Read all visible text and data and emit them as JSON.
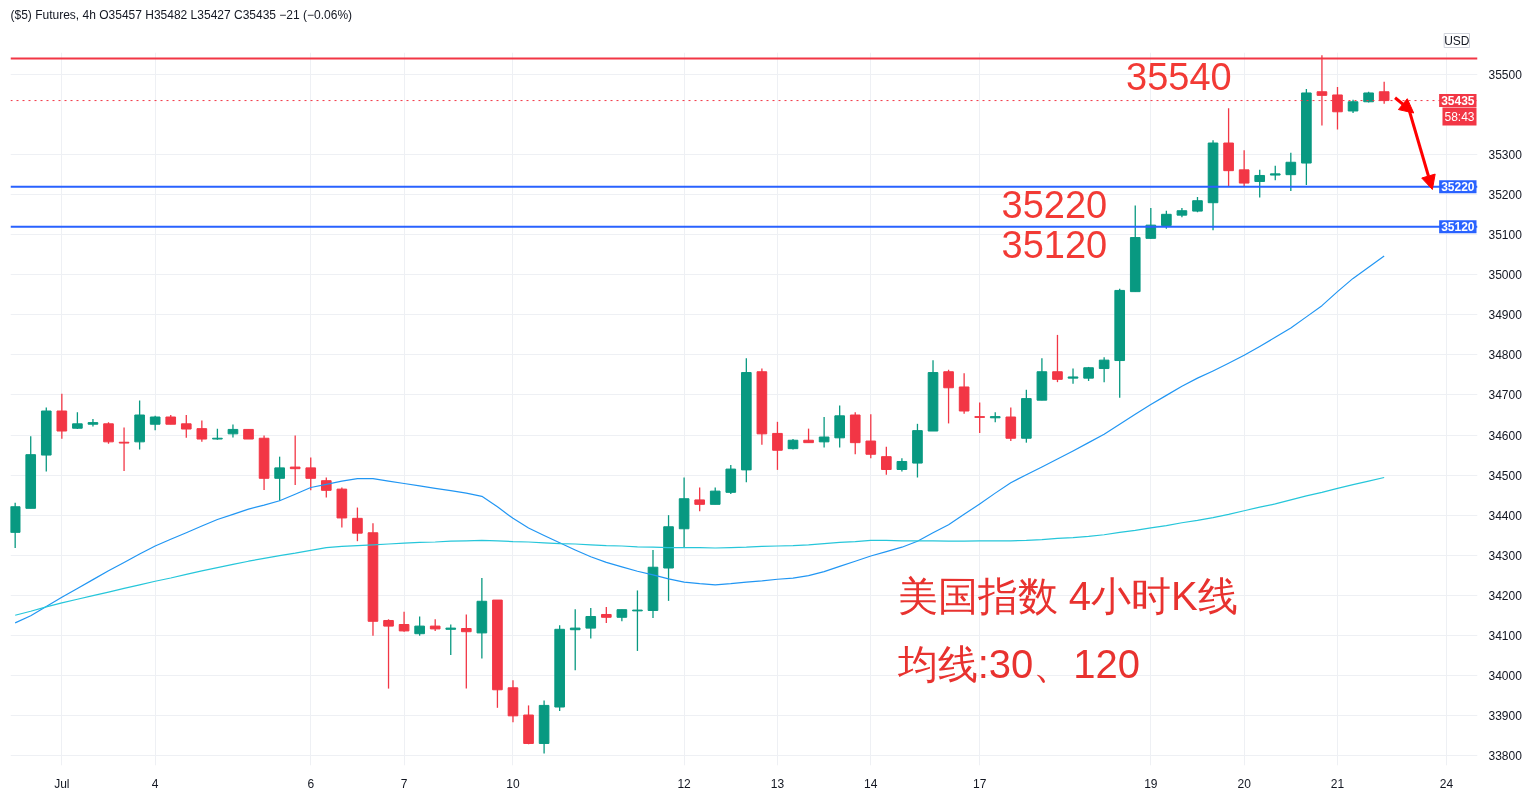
{
  "chart_data": {
    "type": "candlestick",
    "title": "($5) Futures, 4h  O35457 H35482 L35427 C35435 −21 (−0.06%)",
    "ylabel": "USD",
    "categories": [
      null,
      null,
      null,
      "Jul",
      null,
      null,
      null,
      null,
      null,
      "4",
      null,
      null,
      null,
      null,
      null,
      null,
      null,
      null,
      null,
      "6",
      null,
      null,
      null,
      null,
      null,
      "7",
      null,
      null,
      null,
      null,
      null,
      null,
      "10",
      null,
      null,
      null,
      null,
      null,
      null,
      null,
      null,
      null,
      null,
      "12",
      null,
      null,
      null,
      null,
      null,
      "13",
      null,
      null,
      null,
      null,
      null,
      "14",
      null,
      null,
      null,
      null,
      null,
      null,
      "17",
      null,
      null,
      null,
      null,
      null,
      null,
      null,
      null,
      null,
      null,
      "19",
      null,
      null,
      null,
      null,
      null,
      "20",
      null,
      null,
      null,
      null,
      null,
      "21",
      null,
      null,
      null,
      null,
      null,
      null,
      "24"
    ],
    "ohlc": [
      [
        34357,
        34431,
        34318,
        34421
      ],
      [
        34417,
        34597,
        34417,
        34551
      ],
      [
        34550,
        34669,
        34509,
        34660
      ],
      [
        34660,
        34703,
        34591,
        34610
      ],
      [
        34617,
        34657,
        34615,
        34628
      ],
      [
        34627,
        34640,
        34621,
        34631
      ],
      [
        34628,
        34632,
        34578,
        34583
      ],
      [
        34582,
        34619,
        34510,
        34580
      ],
      [
        34583,
        34686,
        34564,
        34650
      ],
      [
        34627,
        34648,
        34612,
        34645
      ],
      [
        34645,
        34650,
        34627,
        34627
      ],
      [
        34628,
        34650,
        34593,
        34615
      ],
      [
        34616,
        34636,
        34583,
        34590
      ],
      [
        34590,
        34616,
        34588,
        34592
      ],
      [
        34603,
        34626,
        34594,
        34614
      ],
      [
        34614,
        34614,
        34590,
        34590
      ],
      [
        34592,
        34599,
        34463,
        34492
      ],
      [
        34492,
        34546,
        34436,
        34518
      ],
      [
        34520,
        34599,
        34475,
        34516
      ],
      [
        34518,
        34544,
        34462,
        34492
      ],
      [
        34486,
        34494,
        34444,
        34462
      ],
      [
        34465,
        34469,
        34369,
        34393
      ],
      [
        34392,
        34419,
        34335,
        34355
      ],
      [
        34356,
        34380,
        34099,
        34135
      ],
      [
        34137,
        34140,
        33967,
        34123
      ],
      [
        34127,
        34159,
        34109,
        34111
      ],
      [
        34104,
        34147,
        34099,
        34123
      ],
      [
        34123,
        34140,
        34111,
        34116
      ],
      [
        34115,
        34127,
        34051,
        34118
      ],
      [
        34117,
        34152,
        33967,
        34109
      ],
      [
        34106,
        34243,
        34042,
        34185
      ],
      [
        34188,
        34188,
        33919,
        33964
      ],
      [
        33969,
        33988,
        33883,
        33899
      ],
      [
        33901,
        33925,
        33828,
        33830
      ],
      [
        33830,
        33937,
        33805,
        33925
      ],
      [
        33921,
        34125,
        33911,
        34115
      ],
      [
        34114,
        34165,
        34013,
        34118
      ],
      [
        34118,
        34168,
        34092,
        34147
      ],
      [
        34152,
        34171,
        34131,
        34145
      ],
      [
        34145,
        34164,
        34135,
        34164
      ],
      [
        34161,
        34212,
        34061,
        34163
      ],
      [
        34162,
        34313,
        34143,
        34270
      ],
      [
        34268,
        34400,
        34186,
        34371
      ],
      [
        34366,
        34494,
        34319,
        34441
      ],
      [
        34438,
        34469,
        34410,
        34427
      ],
      [
        34427,
        34469,
        34427,
        34460
      ],
      [
        34457,
        34525,
        34453,
        34515
      ],
      [
        34513,
        34792,
        34482,
        34756
      ],
      [
        34758,
        34766,
        34576,
        34603
      ],
      [
        34604,
        34633,
        34513,
        34562
      ],
      [
        34566,
        34590,
        34564,
        34587
      ],
      [
        34587,
        34616,
        34581,
        34581
      ],
      [
        34583,
        34645,
        34569,
        34595
      ],
      [
        34593,
        34674,
        34569,
        34648
      ],
      [
        34650,
        34657,
        34552,
        34581
      ],
      [
        34585,
        34652,
        34542,
        34552
      ],
      [
        34546,
        34571,
        34501,
        34514
      ],
      [
        34514,
        34542,
        34509,
        34534
      ],
      [
        34530,
        34628,
        34494,
        34611
      ],
      [
        34610,
        34787,
        34610,
        34756
      ],
      [
        34758,
        34763,
        34629,
        34718
      ],
      [
        34720,
        34754,
        34653,
        34660
      ],
      [
        34646,
        34681,
        34605,
        34644
      ],
      [
        34643,
        34657,
        34632,
        34646
      ],
      [
        34645,
        34669,
        34585,
        34592
      ],
      [
        34592,
        34713,
        34581,
        34691
      ],
      [
        34687,
        34792,
        34687,
        34758
      ],
      [
        34758,
        34850,
        34732,
        34739
      ],
      [
        34742,
        34766,
        34728,
        34745
      ],
      [
        34742,
        34770,
        34735,
        34768
      ],
      [
        34766,
        34794,
        34732,
        34787
      ],
      [
        34786,
        34965,
        34693,
        34961
      ],
      [
        34958,
        35173,
        34958,
        35093
      ],
      [
        35091,
        35167,
        35090,
        35124
      ],
      [
        35123,
        35160,
        35115,
        35151
      ],
      [
        35149,
        35167,
        35144,
        35160
      ],
      [
        35159,
        35194,
        35156,
        35185
      ],
      [
        35180,
        35336,
        35111,
        35329
      ],
      [
        35329,
        35416,
        35221,
        35260
      ],
      [
        35262,
        35311,
        35221,
        35229
      ],
      [
        35233,
        35262,
        35193,
        35248
      ],
      [
        35249,
        35272,
        35236,
        35252
      ],
      [
        35250,
        35305,
        35209,
        35281
      ],
      [
        35279,
        35464,
        35224,
        35454
      ],
      [
        35457,
        35548,
        35373,
        35448
      ],
      [
        35449,
        35469,
        35363,
        35407
      ],
      [
        35409,
        35437,
        35404,
        35432
      ],
      [
        35432,
        35457,
        35430,
        35454
      ],
      [
        35457,
        35482,
        35427,
        35435
      ],
      null,
      null,
      null,
      null
    ],
    "colors": [
      "#089981",
      "#089981",
      "#089981",
      "#f23645",
      "#089981",
      "#089981",
      "#f23645",
      "#f23645",
      "#089981",
      "#089981",
      "#f23645",
      "#f23645",
      "#f23645",
      "#089981",
      "#089981",
      "#f23645",
      "#f23645",
      "#089981",
      "#f23645",
      "#f23645",
      "#f23645",
      "#f23645",
      "#f23645",
      "#f23645",
      "#f23645",
      "#f23645",
      "#089981",
      "#f23645",
      "#089981",
      "#f23645",
      "#089981",
      "#f23645",
      "#f23645",
      "#f23645",
      "#089981",
      "#089981",
      "#089981",
      "#089981",
      "#f23645",
      "#089981",
      "#089981",
      "#089981",
      "#089981",
      "#089981",
      "#f23645",
      "#089981",
      "#089981",
      "#089981",
      "#f23645",
      "#f23645",
      "#089981",
      "#f23645",
      "#089981",
      "#089981",
      "#f23645",
      "#f23645",
      "#f23645",
      "#089981",
      "#089981",
      "#089981",
      "#f23645",
      "#f23645",
      "#f23645",
      "#089981",
      "#f23645",
      "#089981",
      "#089981",
      "#f23645",
      "#089981",
      "#089981",
      "#089981",
      "#089981",
      "#089981",
      "#089981",
      "#089981",
      "#089981",
      "#089981",
      "#089981",
      "#f23645",
      "#f23645",
      "#089981",
      "#089981",
      "#089981",
      "#089981",
      "#f23645",
      "#f23645",
      "#089981",
      "#089981",
      "#f23645",
      null,
      null,
      null,
      null
    ],
    "series": [
      {
        "type": "line",
        "color": "#2196f3",
        "values": [
          34131,
          34149,
          34172,
          34195,
          34217,
          34239,
          34261,
          34282,
          34303,
          34323,
          34340,
          34356,
          34373,
          34389,
          34402,
          34415,
          34425,
          34436,
          34452,
          34469,
          34477,
          34485,
          34491,
          34491,
          34485,
          34479,
          34473,
          34467,
          34461,
          34455,
          34447,
          34421,
          34392,
          34368,
          34349,
          34331,
          34313,
          34296,
          34282,
          34271,
          34260,
          34251,
          34241,
          34233,
          34229,
          34226,
          34229,
          34233,
          34236,
          34240,
          34243,
          34249,
          34259,
          34272,
          34285,
          34298,
          34309,
          34320,
          34335,
          34356,
          34376,
          34402,
          34428,
          34455,
          34481,
          34501,
          34520,
          34540,
          34560,
          34581,
          34602,
          34627,
          34652,
          34676,
          34699,
          34722,
          34742,
          34760,
          34779,
          34799,
          34821,
          34844,
          34867,
          34895,
          34923,
          34958,
          34991,
          35019,
          35047,
          null,
          null,
          null,
          null
        ]
      },
      {
        "type": "line",
        "color": "#26c6da",
        "values": [
          34150,
          34160,
          34171,
          34181,
          34190,
          34199,
          34208,
          34217,
          34226,
          34235,
          34243,
          34252,
          34261,
          34269,
          34277,
          34285,
          34292,
          34299,
          34305,
          34312,
          34319,
          34322,
          34324,
          34326,
          34328,
          34330,
          34332,
          34333,
          34335,
          34336,
          34337,
          34336,
          34334,
          34333,
          34331,
          34329,
          34328,
          34326,
          34324,
          34323,
          34321,
          34320,
          34319,
          34319,
          34319,
          34318,
          34319,
          34320,
          34322,
          34323,
          34324,
          34326,
          34329,
          34332,
          34334,
          34337,
          34337,
          34336,
          34336,
          34336,
          34335,
          34335,
          34336,
          34336,
          34336,
          34337,
          34339,
          34342,
          34344,
          34347,
          34351,
          34357,
          34362,
          34368,
          34374,
          34381,
          34387,
          34394,
          34402,
          34411,
          34420,
          34428,
          34438,
          34448,
          34457,
          34467,
          34476,
          34485,
          34494,
          null,
          null,
          null,
          null
        ]
      }
    ],
    "ylim": [
      33775,
      35555
    ],
    "yticks": [
      33800,
      33900,
      34000,
      34100,
      34200,
      34300,
      34400,
      34500,
      34600,
      34700,
      34800,
      34900,
      35000,
      35100,
      35200,
      35300,
      35500
    ],
    "grid": true,
    "line_style": "solid",
    "ref_lines": [
      {
        "axis": "y",
        "value": 35540,
        "label": "35540",
        "color": "#f23645",
        "line_style": "solid"
      },
      {
        "axis": "y",
        "value": 35220,
        "label": "35220",
        "color": "#2962ff",
        "line_style": "solid"
      },
      {
        "axis": "y",
        "value": 35120,
        "label": "35120",
        "color": "#2962ff",
        "line_style": "solid"
      },
      {
        "axis": "y",
        "value": 35435,
        "label": "35435",
        "color": "#f23645",
        "line_style": "dotted"
      }
    ],
    "annotations": [
      "美国指数 4小时K线",
      "均线:30、120",
      "58:43"
    ]
  }
}
